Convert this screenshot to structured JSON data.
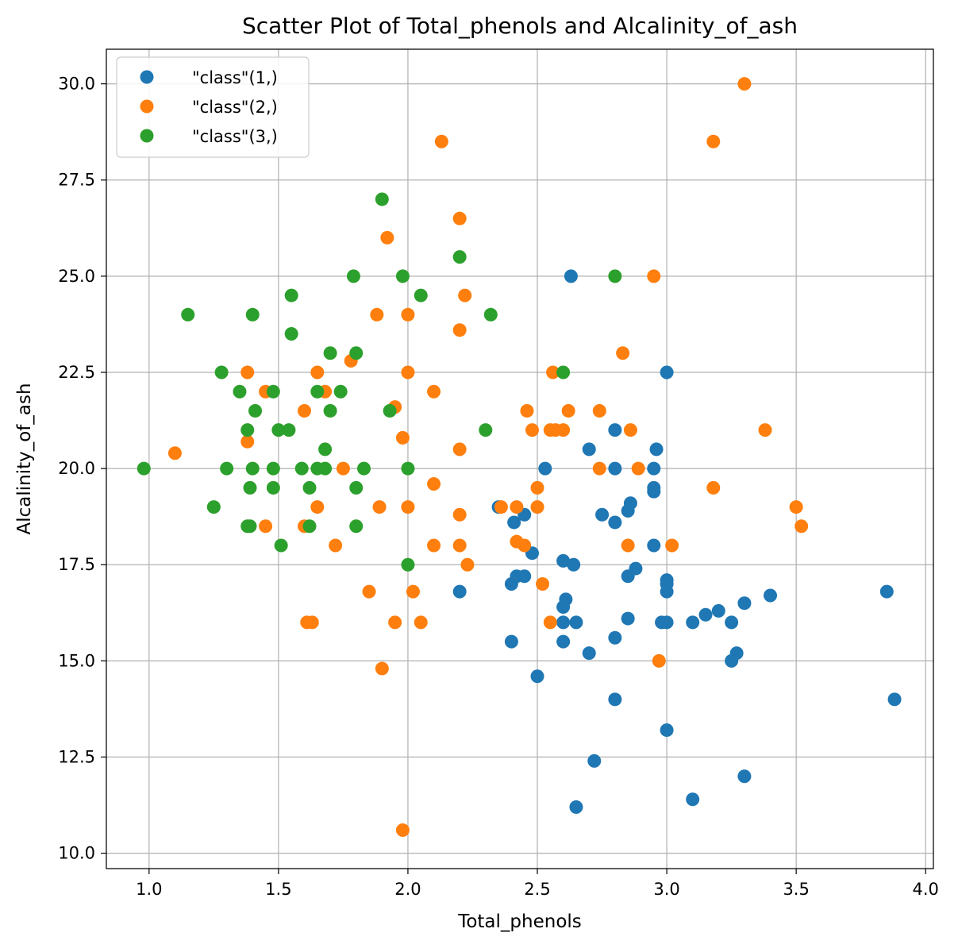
{
  "chart_data": {
    "type": "scatter",
    "title": "Scatter Plot of Total_phenols and Alcalinity_of_ash",
    "xlabel": "Total_phenols",
    "ylabel": "Alcalinity_of_ash",
    "xlim": [
      0.835,
      4.03
    ],
    "ylim": [
      9.6,
      30.9
    ],
    "xticks": [
      1.0,
      1.5,
      2.0,
      2.5,
      3.0,
      3.5,
      4.0
    ],
    "xtick_labels": [
      "1.0",
      "1.5",
      "2.0",
      "2.5",
      "3.0",
      "3.5",
      "4.0"
    ],
    "yticks": [
      10.0,
      12.5,
      15.0,
      17.5,
      20.0,
      22.5,
      25.0,
      27.5,
      30.0
    ],
    "ytick_labels": [
      "10.0",
      "12.5",
      "15.0",
      "17.5",
      "20.0",
      "22.5",
      "25.0",
      "27.5",
      "30.0"
    ],
    "grid": true,
    "legend_position": "top-left",
    "series": [
      {
        "name": "\"class\"(1,)",
        "color": "#1f77b4",
        "points": [
          [
            2.8,
            15.6
          ],
          [
            2.65,
            11.2
          ],
          [
            2.8,
            18.6
          ],
          [
            3.85,
            16.8
          ],
          [
            2.8,
            21.0
          ],
          [
            3.27,
            15.2
          ],
          [
            2.5,
            14.6
          ],
          [
            2.6,
            17.6
          ],
          [
            2.8,
            14.0
          ],
          [
            2.98,
            16.0
          ],
          [
            2.95,
            18.0
          ],
          [
            2.2,
            16.8
          ],
          [
            2.6,
            16.0
          ],
          [
            3.1,
            11.4
          ],
          [
            3.3,
            12.0
          ],
          [
            2.85,
            17.2
          ],
          [
            2.8,
            20.0
          ],
          [
            2.95,
            20.0
          ],
          [
            3.3,
            16.5
          ],
          [
            2.7,
            15.2
          ],
          [
            3.0,
            16.0
          ],
          [
            2.41,
            18.6
          ],
          [
            2.61,
            16.6
          ],
          [
            2.48,
            17.8
          ],
          [
            2.53,
            20.0
          ],
          [
            2.63,
            25.0
          ],
          [
            2.85,
            16.1
          ],
          [
            2.4,
            17.0
          ],
          [
            2.95,
            19.4
          ],
          [
            2.65,
            16.0
          ],
          [
            3.0,
            22.5
          ],
          [
            2.86,
            19.1
          ],
          [
            2.42,
            17.2
          ],
          [
            2.95,
            19.5
          ],
          [
            2.35,
            19.0
          ],
          [
            2.7,
            20.5
          ],
          [
            2.6,
            15.5
          ],
          [
            2.45,
            18.8
          ],
          [
            3.0,
            16.8
          ],
          [
            3.15,
            16.2
          ],
          [
            2.45,
            17.2
          ],
          [
            3.25,
            15.0
          ],
          [
            2.64,
            17.5
          ],
          [
            3.0,
            17.1
          ],
          [
            2.85,
            18.9
          ],
          [
            3.1,
            16.0
          ],
          [
            2.72,
            12.4
          ],
          [
            3.4,
            16.7
          ],
          [
            2.96,
            20.5
          ],
          [
            3.88,
            14.0
          ],
          [
            3.25,
            16.0
          ],
          [
            2.75,
            18.8
          ],
          [
            2.88,
            17.4
          ],
          [
            3.2,
            16.3
          ],
          [
            3.0,
            13.2
          ],
          [
            2.4,
            15.5
          ],
          [
            2.6,
            16.4
          ],
          [
            3.0,
            17.0
          ]
        ]
      },
      {
        "name": "\"class\"(2,)",
        "color": "#ff7f0e",
        "points": [
          [
            1.98,
            10.6
          ],
          [
            2.05,
            16.0
          ],
          [
            2.02,
            16.8
          ],
          [
            3.5,
            19.0
          ],
          [
            1.89,
            19.0
          ],
          [
            1.9,
            14.8
          ],
          [
            2.2,
            18.0
          ],
          [
            1.95,
            16.0
          ],
          [
            1.6,
            18.5
          ],
          [
            1.63,
            16.0
          ],
          [
            1.61,
            16.0
          ],
          [
            1.45,
            18.5
          ],
          [
            1.72,
            18.0
          ],
          [
            1.85,
            16.8
          ],
          [
            2.23,
            17.5
          ],
          [
            2.5,
            19.5
          ],
          [
            2.52,
            17.0
          ],
          [
            2.55,
            16.0
          ],
          [
            2.45,
            18.0
          ],
          [
            2.42,
            18.1
          ],
          [
            2.42,
            19.0
          ],
          [
            2.36,
            19.0
          ],
          [
            2.5,
            19.0
          ],
          [
            2.1,
            18.0
          ],
          [
            2.2,
            18.8
          ],
          [
            2.1,
            19.6
          ],
          [
            2.0,
            19.0
          ],
          [
            1.75,
            20.0
          ],
          [
            1.65,
            19.0
          ],
          [
            2.85,
            18.0
          ],
          [
            3.02,
            18.0
          ],
          [
            2.97,
            15.0
          ],
          [
            3.52,
            18.5
          ],
          [
            3.18,
            19.5
          ],
          [
            2.89,
            20.0
          ],
          [
            2.74,
            20.0
          ],
          [
            1.1,
            20.4
          ],
          [
            1.38,
            20.7
          ],
          [
            1.6,
            21.5
          ],
          [
            1.98,
            20.8
          ],
          [
            2.2,
            20.5
          ],
          [
            2.48,
            21.0
          ],
          [
            2.55,
            21.0
          ],
          [
            2.57,
            21.0
          ],
          [
            2.6,
            21.0
          ],
          [
            2.86,
            21.0
          ],
          [
            3.38,
            21.0
          ],
          [
            2.46,
            21.5
          ],
          [
            2.62,
            21.5
          ],
          [
            2.74,
            21.5
          ],
          [
            1.95,
            21.6
          ],
          [
            1.68,
            22.0
          ],
          [
            1.45,
            22.0
          ],
          [
            2.1,
            22.0
          ],
          [
            1.38,
            22.5
          ],
          [
            1.65,
            22.5
          ],
          [
            2.0,
            22.5
          ],
          [
            2.56,
            22.5
          ],
          [
            1.78,
            22.8
          ],
          [
            2.83,
            23.0
          ],
          [
            2.2,
            23.6
          ],
          [
            2.0,
            24.0
          ],
          [
            1.88,
            24.0
          ],
          [
            2.22,
            24.5
          ],
          [
            2.95,
            25.0
          ],
          [
            1.92,
            26.0
          ],
          [
            2.2,
            26.5
          ],
          [
            2.13,
            28.5
          ],
          [
            3.18,
            28.5
          ],
          [
            3.3,
            30.0
          ]
        ]
      },
      {
        "name": "\"class\"(3,)",
        "color": "#2ca02c",
        "points": [
          [
            0.98,
            20.0
          ],
          [
            1.15,
            24.0
          ],
          [
            1.25,
            19.0
          ],
          [
            1.28,
            22.5
          ],
          [
            1.3,
            20.0
          ],
          [
            1.35,
            22.0
          ],
          [
            1.38,
            21.0
          ],
          [
            1.38,
            18.5
          ],
          [
            1.39,
            19.5
          ],
          [
            1.39,
            18.5
          ],
          [
            1.4,
            24.0
          ],
          [
            1.4,
            20.0
          ],
          [
            1.41,
            21.5
          ],
          [
            1.48,
            22.0
          ],
          [
            1.48,
            20.0
          ],
          [
            1.48,
            19.5
          ],
          [
            1.5,
            21.0
          ],
          [
            1.51,
            18.0
          ],
          [
            1.54,
            21.0
          ],
          [
            1.55,
            24.5
          ],
          [
            1.55,
            23.5
          ],
          [
            1.59,
            20.0
          ],
          [
            1.62,
            19.5
          ],
          [
            1.62,
            18.5
          ],
          [
            1.65,
            22.0
          ],
          [
            1.65,
            20.0
          ],
          [
            1.68,
            20.5
          ],
          [
            1.68,
            20.0
          ],
          [
            1.7,
            23.0
          ],
          [
            1.7,
            21.5
          ],
          [
            1.74,
            22.0
          ],
          [
            1.79,
            25.0
          ],
          [
            1.8,
            23.0
          ],
          [
            1.8,
            19.5
          ],
          [
            1.8,
            18.5
          ],
          [
            1.83,
            20.0
          ],
          [
            1.9,
            27.0
          ],
          [
            1.93,
            21.5
          ],
          [
            1.98,
            25.0
          ],
          [
            2.0,
            20.0
          ],
          [
            2.0,
            17.5
          ],
          [
            2.05,
            24.5
          ],
          [
            2.2,
            25.5
          ],
          [
            2.3,
            21.0
          ],
          [
            2.32,
            24.0
          ],
          [
            2.6,
            22.5
          ],
          [
            2.8,
            25.0
          ]
        ]
      }
    ]
  }
}
